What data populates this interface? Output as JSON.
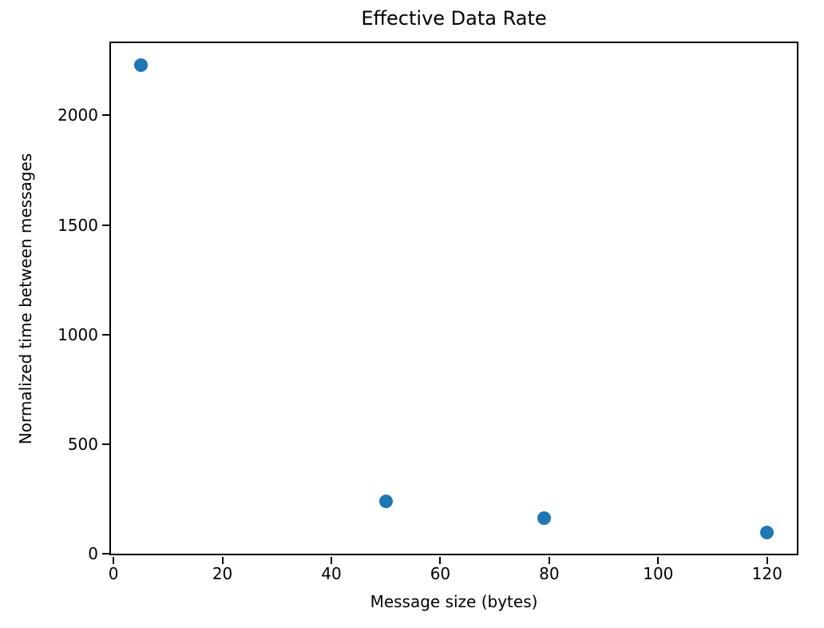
{
  "figure": {
    "background": "#ffffff"
  },
  "chart_data": {
    "type": "scatter",
    "title": "Effective Data Rate",
    "xlabel": "Message size (bytes)",
    "ylabel": "Normalized time between messages",
    "x": [
      5,
      50,
      79,
      120
    ],
    "y": [
      2230,
      240,
      163,
      98
    ],
    "xticks": [
      0,
      20,
      40,
      60,
      80,
      100,
      120
    ],
    "yticks": [
      0,
      500,
      1000,
      1500,
      2000
    ],
    "xlim": [
      -0.75,
      125.75
    ],
    "ylim": [
      -6.5,
      2336.5
    ],
    "grid": false,
    "marker_color": "#1f77b4",
    "axis_color": "#000000",
    "text_color": "#000000"
  }
}
